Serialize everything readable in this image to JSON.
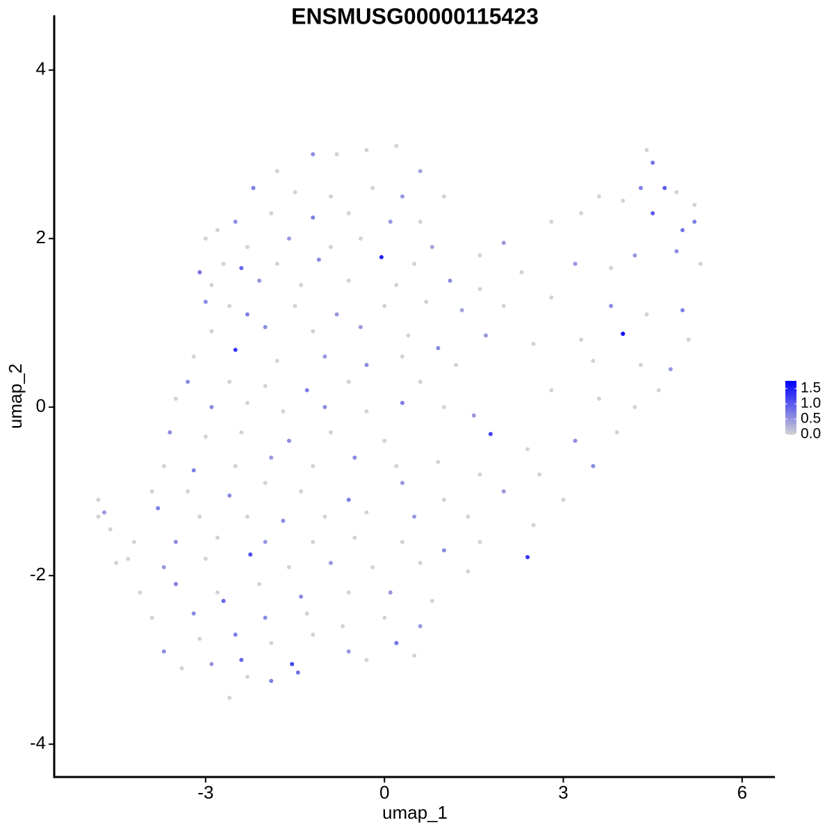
{
  "chart_data": {
    "type": "scatter",
    "title": "ENSMUSG00000115423",
    "x_label": "umap_1",
    "y_label": "umap_2",
    "xlim": [
      -5.54,
      6.55
    ],
    "ylim": [
      -4.39,
      4.65
    ],
    "xticks": [
      -3,
      0,
      3,
      6
    ],
    "yticks": [
      -4,
      -2,
      0,
      2,
      4
    ],
    "colorbar": {
      "limits": [
        0,
        1.75
      ],
      "low_color": "#d3d3d3",
      "high_color": "#0000ff",
      "ticks": [
        {
          "value": 0,
          "label": "0.0"
        },
        0.5,
        {
          "value": 1,
          "label": "1.0"
        },
        1.5
      ]
    },
    "x": [
      -1.2,
      -0.8,
      -0.3,
      0.2,
      0.6,
      -1.8,
      4.4,
      4.5,
      4.7,
      4.9,
      -2.2,
      -1.5,
      -0.9,
      -0.2,
      0.3,
      1.0,
      4.0,
      3.6,
      5.2,
      4.3,
      -2.8,
      -2.5,
      -1.9,
      -1.2,
      -0.6,
      0.1,
      0.6,
      2.8,
      3.3,
      4.5,
      5.0,
      5.2,
      -3.0,
      -2.3,
      -1.6,
      -0.9,
      -0.4,
      0.8,
      1.6,
      2.0,
      -3.1,
      -2.7,
      -2.4,
      -1.8,
      -1.1,
      -0.05,
      0.5,
      1.1,
      2.3,
      3.2,
      3.8,
      4.2,
      4.9,
      5.3,
      -2.9,
      -2.1,
      -1.4,
      -0.6,
      0.2,
      1.6,
      -3.0,
      -2.6,
      -2.3,
      -1.5,
      -0.8,
      0.0,
      0.7,
      1.3,
      2.0,
      2.8,
      3.8,
      4.4,
      5.0,
      5.1,
      -2.9,
      -2.0,
      -1.2,
      -0.4,
      0.4,
      0.9,
      4.0,
      3.3,
      2.5,
      1.7,
      -3.2,
      -2.5,
      -1.8,
      -1.0,
      -0.3,
      0.3,
      1.2,
      3.5,
      4.3,
      4.8,
      -3.3,
      -2.6,
      -2.0,
      -1.3,
      -0.6,
      0.6,
      -3.5,
      -2.9,
      -2.3,
      -1.7,
      -1.0,
      -0.3,
      0.3,
      1.0,
      1.5,
      2.8,
      3.6,
      4.2,
      4.6,
      -3.6,
      -3.0,
      -2.4,
      -1.6,
      -0.9,
      0.0,
      1.78,
      2.4,
      3.2,
      3.9,
      -3.7,
      -3.2,
      -2.5,
      -1.9,
      -1.2,
      -0.5,
      0.2,
      0.9,
      1.6,
      2.6,
      3.5,
      -3.9,
      -3.3,
      -2.6,
      -2.0,
      -1.4,
      -0.6,
      0.3,
      1.0,
      2.0,
      3.0,
      -4.7,
      -4.8,
      -3.8,
      -3.1,
      -2.3,
      -1.7,
      -1.0,
      -0.3,
      0.5,
      1.4,
      2.5,
      -4.2,
      -3.5,
      -2.8,
      -2.0,
      -1.2,
      -0.5,
      0.3,
      1.0,
      1.6,
      2.4,
      -4.3,
      -3.7,
      -3.0,
      -2.25,
      -1.6,
      -0.9,
      -0.2,
      0.6,
      1.4,
      -4.1,
      -3.5,
      -2.8,
      -2.1,
      -1.4,
      -0.6,
      0.1,
      0.8,
      -3.9,
      -3.2,
      -2.7,
      -2.0,
      -1.3,
      -0.7,
      0.0,
      0.6,
      -3.7,
      -3.1,
      -2.5,
      -1.9,
      -1.2,
      -0.6,
      0.2,
      0.5,
      -2.4,
      -1.55,
      -3.4,
      -2.9,
      -2.3,
      -1.9,
      -2.6,
      -1.45,
      -0.3,
      -4.8,
      -4.6,
      -4.5
    ],
    "y": [
      3.0,
      3.0,
      3.05,
      3.1,
      2.8,
      2.8,
      3.05,
      2.9,
      2.6,
      2.55,
      2.6,
      2.55,
      2.5,
      2.6,
      2.5,
      2.5,
      2.45,
      2.5,
      2.4,
      2.6,
      2.1,
      2.2,
      2.3,
      2.25,
      2.3,
      2.2,
      2.2,
      2.2,
      2.3,
      2.3,
      2.1,
      2.2,
      2.0,
      1.9,
      2.0,
      1.9,
      2.0,
      1.9,
      1.8,
      1.95,
      1.6,
      1.7,
      1.65,
      1.7,
      1.75,
      1.78,
      1.7,
      1.5,
      1.6,
      1.7,
      1.65,
      1.8,
      1.85,
      1.7,
      1.45,
      1.5,
      1.45,
      1.5,
      1.45,
      1.4,
      1.25,
      1.2,
      1.1,
      1.2,
      1.1,
      1.2,
      1.25,
      1.15,
      1.2,
      1.3,
      1.2,
      1.1,
      1.15,
      0.8,
      0.9,
      0.95,
      0.9,
      0.95,
      0.85,
      0.7,
      0.87,
      0.8,
      0.75,
      0.85,
      0.6,
      0.68,
      0.55,
      0.6,
      0.5,
      0.6,
      0.5,
      0.55,
      0.5,
      0.45,
      0.3,
      0.3,
      0.25,
      0.2,
      0.3,
      0.3,
      0.1,
      0.0,
      0.05,
      -0.05,
      0.0,
      -0.05,
      0.05,
      0.0,
      -0.1,
      0.2,
      0.1,
      0.0,
      0.2,
      -0.3,
      -0.35,
      -0.3,
      -0.4,
      -0.3,
      -0.4,
      -0.32,
      -0.5,
      -0.4,
      -0.3,
      -0.7,
      -0.75,
      -0.7,
      -0.6,
      -0.7,
      -0.6,
      -0.7,
      -0.65,
      -0.8,
      -0.8,
      -0.7,
      -1.0,
      -1.0,
      -1.05,
      -0.9,
      -1.0,
      -1.1,
      -0.9,
      -1.1,
      -1.0,
      -1.1,
      -1.25,
      -1.3,
      -1.2,
      -1.3,
      -1.3,
      -1.35,
      -1.3,
      -1.25,
      -1.3,
      -1.3,
      -1.4,
      -1.6,
      -1.6,
      -1.55,
      -1.6,
      -1.6,
      -1.55,
      -1.6,
      -1.7,
      -1.6,
      -1.78,
      -1.8,
      -1.9,
      -1.8,
      -1.75,
      -1.9,
      -1.85,
      -1.9,
      -1.85,
      -1.95,
      -2.2,
      -2.1,
      -2.2,
      -2.1,
      -2.25,
      -2.2,
      -2.2,
      -2.3,
      -2.5,
      -2.45,
      -2.3,
      -2.5,
      -2.45,
      -2.6,
      -2.5,
      -2.6,
      -2.9,
      -2.75,
      -2.7,
      -2.8,
      -2.7,
      -2.9,
      -2.8,
      -2.95,
      -3.0,
      -3.05,
      -3.1,
      -3.05,
      -3.2,
      -3.25,
      -3.45,
      -3.15,
      -3.0,
      -1.1,
      -1.45,
      -1.85
    ],
    "values": [
      0.6,
      0,
      0,
      0,
      0.4,
      0,
      0,
      0.8,
      1.0,
      0,
      0.7,
      0,
      0,
      0,
      0.5,
      0,
      0,
      0,
      0,
      0.7,
      0,
      0.6,
      0,
      0.7,
      0,
      0.5,
      0,
      0,
      0,
      1.0,
      0.8,
      0.7,
      0,
      0,
      0.5,
      0,
      0,
      0.4,
      0,
      0.5,
      0.8,
      0,
      0.9,
      0,
      0.6,
      1.5,
      0,
      0.6,
      0,
      0.5,
      0,
      0.5,
      0.6,
      0,
      0,
      0.5,
      0,
      0,
      0,
      0,
      0.6,
      0,
      0.7,
      0,
      0.5,
      0,
      0,
      0.4,
      0,
      0,
      0.6,
      0,
      0.7,
      0,
      0,
      0.6,
      0,
      0.5,
      0,
      0.6,
      1.75,
      0,
      0,
      0.5,
      0,
      1.3,
      0,
      0.5,
      0.6,
      0,
      0,
      0,
      0,
      0.5,
      0.6,
      0,
      0,
      0.7,
      0,
      0,
      0,
      0.6,
      0,
      0,
      0.6,
      0,
      0.7,
      0,
      0.5,
      0,
      0,
      0,
      0,
      0.6,
      0,
      0,
      0.6,
      0,
      0,
      1.2,
      0,
      0.6,
      0,
      0,
      0.7,
      0,
      0.5,
      0,
      0.6,
      0,
      0,
      0,
      0,
      0.6,
      0,
      0,
      0.6,
      0,
      0,
      0.7,
      0.5,
      0,
      0.5,
      0,
      0.5,
      0,
      0.7,
      0,
      0,
      0.6,
      0,
      0,
      0.5,
      0,
      0,
      0,
      0.6,
      0,
      0.5,
      0,
      0,
      0,
      0.6,
      0,
      1.3,
      0,
      0.5,
      0,
      1.1,
      0,
      0.5,
      0,
      0,
      0,
      0,
      0.7,
      0,
      0,
      0.6,
      0,
      0.5,
      0,
      0,
      0.6,
      0.9,
      0.6,
      0,
      0,
      0,
      0.5,
      0.6,
      0,
      0.7,
      0,
      0,
      0.5,
      0.8,
      0,
      0.9,
      1.2,
      0,
      0.5,
      0,
      0.7,
      0,
      0.8,
      0,
      0,
      0,
      0
    ]
  }
}
